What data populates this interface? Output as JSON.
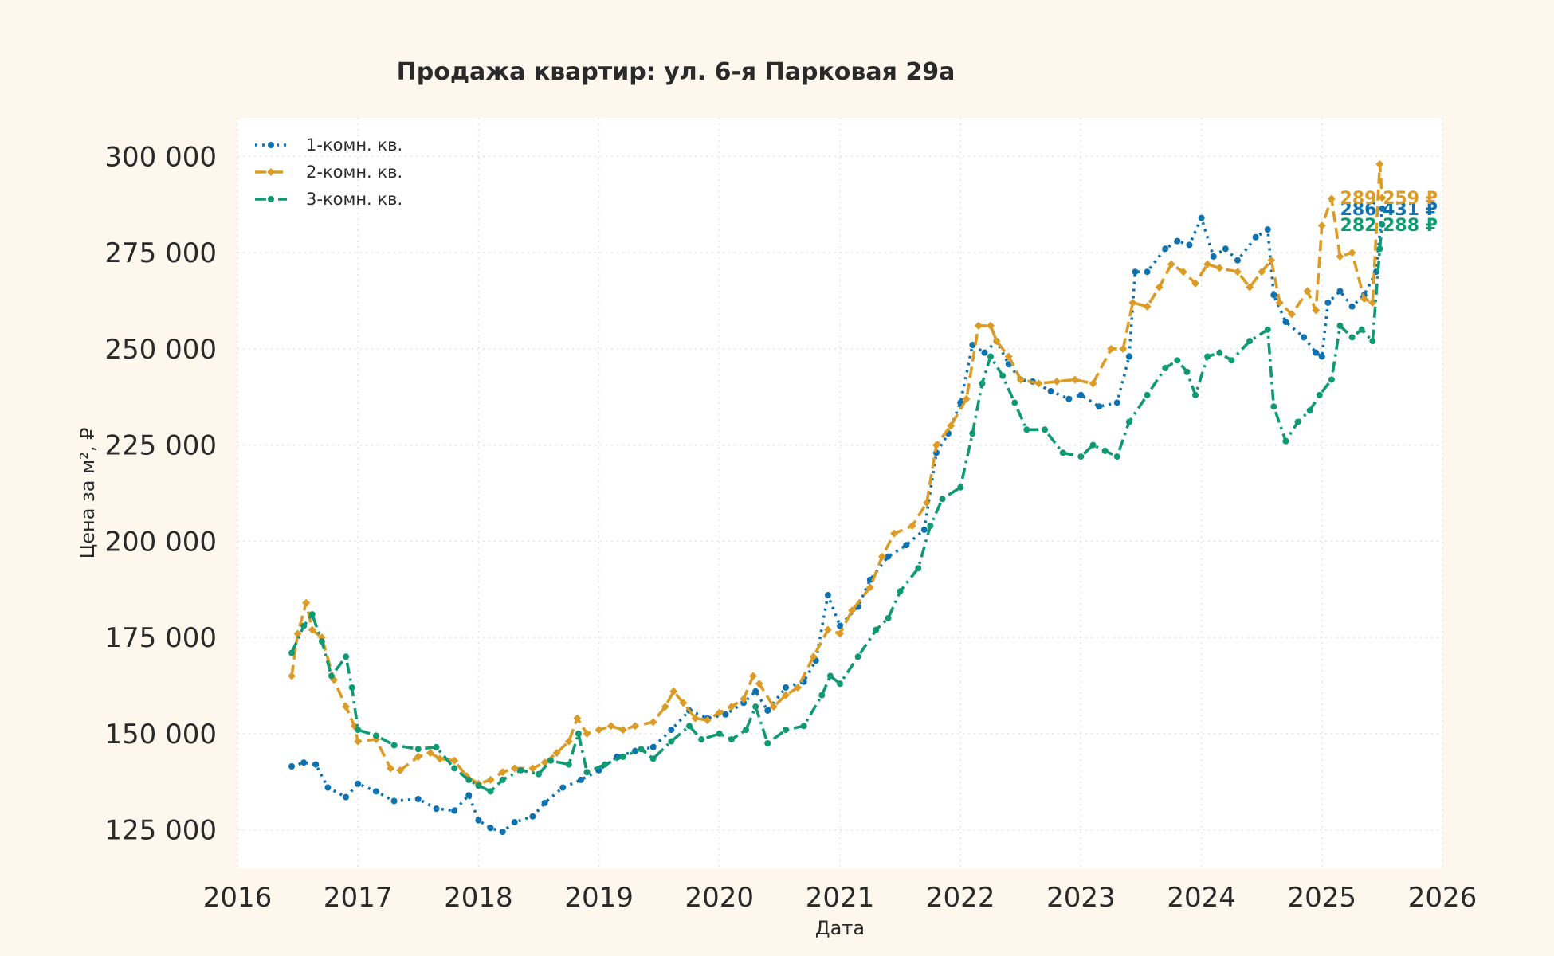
{
  "chart_data": {
    "type": "line",
    "title": "Продажа квартир: ул. 6-я Парковая 29а",
    "xlabel": "Дата",
    "ylabel": "Цена за м², ₽",
    "xlim": [
      2016,
      2026
    ],
    "ylim": [
      115000,
      310000
    ],
    "x_ticks": [
      2016,
      2017,
      2018,
      2019,
      2020,
      2021,
      2022,
      2023,
      2024,
      2025,
      2026
    ],
    "y_ticks": [
      125000,
      150000,
      175000,
      200000,
      225000,
      250000,
      275000,
      300000
    ],
    "y_tick_labels": [
      "125 000",
      "150 000",
      "175 000",
      "200 000",
      "225 000",
      "250 000",
      "275 000",
      "300 000"
    ],
    "grid": true,
    "legend_position": "top-left",
    "series": [
      {
        "name": "1-комн. кв.",
        "color": "#0f72b0",
        "line_style": "dotted",
        "marker": "circle",
        "end_label": "286 431 ₽",
        "points": [
          [
            2016.45,
            141500
          ],
          [
            2016.55,
            142500
          ],
          [
            2016.65,
            142000
          ],
          [
            2016.75,
            136000
          ],
          [
            2016.9,
            133500
          ],
          [
            2017.0,
            137000
          ],
          [
            2017.15,
            135000
          ],
          [
            2017.3,
            132500
          ],
          [
            2017.5,
            133000
          ],
          [
            2017.65,
            130500
          ],
          [
            2017.8,
            130000
          ],
          [
            2017.92,
            134000
          ],
          [
            2018.0,
            127500
          ],
          [
            2018.1,
            125500
          ],
          [
            2018.2,
            124500
          ],
          [
            2018.3,
            127000
          ],
          [
            2018.45,
            128500
          ],
          [
            2018.55,
            132000
          ],
          [
            2018.7,
            136000
          ],
          [
            2018.85,
            138000
          ],
          [
            2019.0,
            140500
          ],
          [
            2019.15,
            144000
          ],
          [
            2019.3,
            145500
          ],
          [
            2019.45,
            146500
          ],
          [
            2019.6,
            151000
          ],
          [
            2019.75,
            156000
          ],
          [
            2019.9,
            154000
          ],
          [
            2020.05,
            155000
          ],
          [
            2020.2,
            158000
          ],
          [
            2020.3,
            161000
          ],
          [
            2020.4,
            156000
          ],
          [
            2020.55,
            162000
          ],
          [
            2020.7,
            163500
          ],
          [
            2020.8,
            169000
          ],
          [
            2020.9,
            186000
          ],
          [
            2021.0,
            178000
          ],
          [
            2021.15,
            183000
          ],
          [
            2021.25,
            190000
          ],
          [
            2021.4,
            196000
          ],
          [
            2021.55,
            199000
          ],
          [
            2021.7,
            203000
          ],
          [
            2021.8,
            223000
          ],
          [
            2021.9,
            228000
          ],
          [
            2022.0,
            236000
          ],
          [
            2022.1,
            251000
          ],
          [
            2022.2,
            249000
          ],
          [
            2022.3,
            252000
          ],
          [
            2022.4,
            246000
          ],
          [
            2022.5,
            242000
          ],
          [
            2022.6,
            241500
          ],
          [
            2022.75,
            239000
          ],
          [
            2022.9,
            237000
          ],
          [
            2023.0,
            238000
          ],
          [
            2023.15,
            235000
          ],
          [
            2023.3,
            236000
          ],
          [
            2023.4,
            248000
          ],
          [
            2023.45,
            270000
          ],
          [
            2023.55,
            270000
          ],
          [
            2023.7,
            276000
          ],
          [
            2023.8,
            278000
          ],
          [
            2023.9,
            277000
          ],
          [
            2024.0,
            284000
          ],
          [
            2024.1,
            274000
          ],
          [
            2024.2,
            276000
          ],
          [
            2024.3,
            273000
          ],
          [
            2024.45,
            279000
          ],
          [
            2024.55,
            281000
          ],
          [
            2024.6,
            264000
          ],
          [
            2024.7,
            257000
          ],
          [
            2024.85,
            253000
          ],
          [
            2024.95,
            249000
          ],
          [
            2025.0,
            248000
          ],
          [
            2025.05,
            262000
          ],
          [
            2025.15,
            265000
          ],
          [
            2025.25,
            261000
          ],
          [
            2025.35,
            264000
          ],
          [
            2025.45,
            270000
          ],
          [
            2025.5,
            286431
          ]
        ]
      },
      {
        "name": "2-комн. кв.",
        "color": "#db9b25",
        "line_style": "dashed",
        "marker": "diamond",
        "end_label": "289 259 ₽",
        "points": [
          [
            2016.45,
            165000
          ],
          [
            2016.5,
            176000
          ],
          [
            2016.57,
            184000
          ],
          [
            2016.62,
            177000
          ],
          [
            2016.7,
            175000
          ],
          [
            2016.8,
            164000
          ],
          [
            2016.9,
            157000
          ],
          [
            2016.97,
            152000
          ],
          [
            2017.0,
            148000
          ],
          [
            2017.15,
            148500
          ],
          [
            2017.27,
            141000
          ],
          [
            2017.35,
            140500
          ],
          [
            2017.5,
            144000
          ],
          [
            2017.6,
            145000
          ],
          [
            2017.68,
            143500
          ],
          [
            2017.8,
            143000
          ],
          [
            2017.9,
            139000
          ],
          [
            2018.0,
            137000
          ],
          [
            2018.1,
            138000
          ],
          [
            2018.2,
            140000
          ],
          [
            2018.3,
            141000
          ],
          [
            2018.45,
            141000
          ],
          [
            2018.55,
            142500
          ],
          [
            2018.65,
            145000
          ],
          [
            2018.75,
            148000
          ],
          [
            2018.82,
            154000
          ],
          [
            2018.9,
            150000
          ],
          [
            2019.0,
            151000
          ],
          [
            2019.1,
            152000
          ],
          [
            2019.2,
            151000
          ],
          [
            2019.3,
            152000
          ],
          [
            2019.45,
            153000
          ],
          [
            2019.55,
            157000
          ],
          [
            2019.62,
            161000
          ],
          [
            2019.7,
            158000
          ],
          [
            2019.8,
            154000
          ],
          [
            2019.9,
            153500
          ],
          [
            2020.0,
            155500
          ],
          [
            2020.1,
            157000
          ],
          [
            2020.2,
            159000
          ],
          [
            2020.28,
            165000
          ],
          [
            2020.33,
            163000
          ],
          [
            2020.45,
            157000
          ],
          [
            2020.55,
            160000
          ],
          [
            2020.65,
            162000
          ],
          [
            2020.78,
            170000
          ],
          [
            2020.9,
            177000
          ],
          [
            2021.0,
            176000
          ],
          [
            2021.1,
            182000
          ],
          [
            2021.25,
            188000
          ],
          [
            2021.35,
            196000
          ],
          [
            2021.45,
            202000
          ],
          [
            2021.6,
            204000
          ],
          [
            2021.72,
            210000
          ],
          [
            2021.8,
            225000
          ],
          [
            2021.92,
            230000
          ],
          [
            2022.05,
            237000
          ],
          [
            2022.15,
            256000
          ],
          [
            2022.25,
            256000
          ],
          [
            2022.3,
            252000
          ],
          [
            2022.4,
            248000
          ],
          [
            2022.5,
            242000
          ],
          [
            2022.65,
            241000
          ],
          [
            2022.8,
            241500
          ],
          [
            2022.95,
            242000
          ],
          [
            2023.1,
            241000
          ],
          [
            2023.25,
            250000
          ],
          [
            2023.35,
            250000
          ],
          [
            2023.43,
            262000
          ],
          [
            2023.55,
            261000
          ],
          [
            2023.65,
            266000
          ],
          [
            2023.75,
            272000
          ],
          [
            2023.85,
            270000
          ],
          [
            2023.95,
            267000
          ],
          [
            2024.05,
            272000
          ],
          [
            2024.15,
            271000
          ],
          [
            2024.3,
            270000
          ],
          [
            2024.4,
            266000
          ],
          [
            2024.5,
            270000
          ],
          [
            2024.58,
            273000
          ],
          [
            2024.65,
            262000
          ],
          [
            2024.75,
            259000
          ],
          [
            2024.88,
            265000
          ],
          [
            2024.95,
            260000
          ],
          [
            2025.0,
            282000
          ],
          [
            2025.08,
            289000
          ],
          [
            2025.15,
            274000
          ],
          [
            2025.25,
            275000
          ],
          [
            2025.35,
            263000
          ],
          [
            2025.42,
            262000
          ],
          [
            2025.48,
            298000
          ],
          [
            2025.5,
            289259
          ]
        ]
      },
      {
        "name": "3-комн. кв.",
        "color": "#0f9a74",
        "line_style": "dashdot",
        "marker": "circle",
        "end_label": "282 288 ₽",
        "points": [
          [
            2016.45,
            171000
          ],
          [
            2016.55,
            178000
          ],
          [
            2016.62,
            181000
          ],
          [
            2016.7,
            174000
          ],
          [
            2016.78,
            165000
          ],
          [
            2016.9,
            170000
          ],
          [
            2016.95,
            162000
          ],
          [
            2017.0,
            151000
          ],
          [
            2017.15,
            149500
          ],
          [
            2017.3,
            147000
          ],
          [
            2017.5,
            146000
          ],
          [
            2017.65,
            146500
          ],
          [
            2017.8,
            141000
          ],
          [
            2017.92,
            138000
          ],
          [
            2018.0,
            136500
          ],
          [
            2018.1,
            135000
          ],
          [
            2018.2,
            138000
          ],
          [
            2018.35,
            140500
          ],
          [
            2018.5,
            139500
          ],
          [
            2018.6,
            143000
          ],
          [
            2018.75,
            142000
          ],
          [
            2018.83,
            150000
          ],
          [
            2018.9,
            140000
          ],
          [
            2019.05,
            142000
          ],
          [
            2019.2,
            144000
          ],
          [
            2019.35,
            146000
          ],
          [
            2019.45,
            143500
          ],
          [
            2019.6,
            148000
          ],
          [
            2019.75,
            152000
          ],
          [
            2019.85,
            148500
          ],
          [
            2020.0,
            150000
          ],
          [
            2020.1,
            148500
          ],
          [
            2020.22,
            151000
          ],
          [
            2020.3,
            157000
          ],
          [
            2020.4,
            147500
          ],
          [
            2020.55,
            151000
          ],
          [
            2020.7,
            152000
          ],
          [
            2020.85,
            160000
          ],
          [
            2020.92,
            165000
          ],
          [
            2021.0,
            163000
          ],
          [
            2021.15,
            170000
          ],
          [
            2021.3,
            177000
          ],
          [
            2021.4,
            180000
          ],
          [
            2021.5,
            187000
          ],
          [
            2021.65,
            193000
          ],
          [
            2021.75,
            204000
          ],
          [
            2021.85,
            211000
          ],
          [
            2022.0,
            214000
          ],
          [
            2022.1,
            228000
          ],
          [
            2022.18,
            241000
          ],
          [
            2022.25,
            248000
          ],
          [
            2022.35,
            243000
          ],
          [
            2022.45,
            236000
          ],
          [
            2022.55,
            229000
          ],
          [
            2022.7,
            229000
          ],
          [
            2022.85,
            223000
          ],
          [
            2023.0,
            222000
          ],
          [
            2023.1,
            225000
          ],
          [
            2023.2,
            223500
          ],
          [
            2023.3,
            222000
          ],
          [
            2023.4,
            231000
          ],
          [
            2023.55,
            238000
          ],
          [
            2023.7,
            245000
          ],
          [
            2023.8,
            247000
          ],
          [
            2023.88,
            244000
          ],
          [
            2023.95,
            238000
          ],
          [
            2024.05,
            248000
          ],
          [
            2024.15,
            249000
          ],
          [
            2024.25,
            247000
          ],
          [
            2024.4,
            252000
          ],
          [
            2024.55,
            255000
          ],
          [
            2024.6,
            235000
          ],
          [
            2024.7,
            226000
          ],
          [
            2024.8,
            231000
          ],
          [
            2024.9,
            234000
          ],
          [
            2024.98,
            238000
          ],
          [
            2025.08,
            242000
          ],
          [
            2025.15,
            256000
          ],
          [
            2025.25,
            253000
          ],
          [
            2025.33,
            255000
          ],
          [
            2025.42,
            252000
          ],
          [
            2025.48,
            276000
          ],
          [
            2025.5,
            282288
          ]
        ]
      }
    ]
  }
}
